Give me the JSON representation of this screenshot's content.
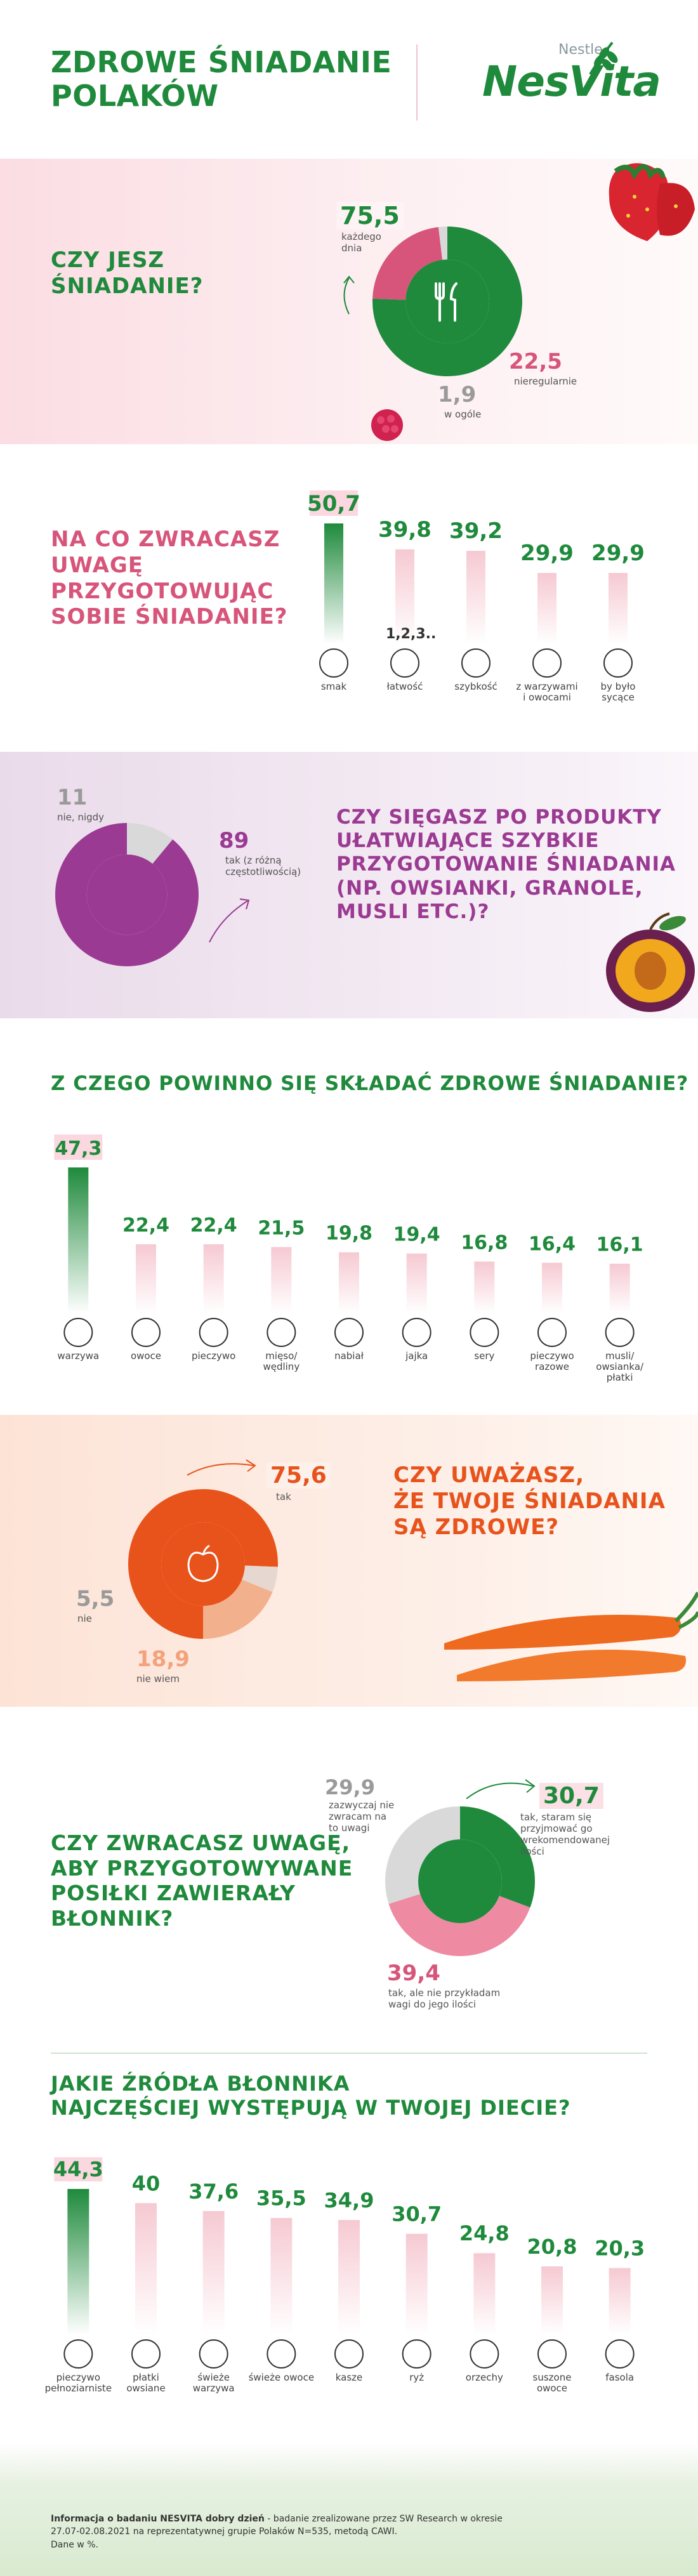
{
  "header": {
    "title_line1": "ZDROWE ŚNIADANIE",
    "title_line2": "POLAKÓW",
    "brand_small": "Nestle",
    "brand": "NesVita"
  },
  "q1": {
    "question_line1": "CZY JESZ",
    "question_line2": "ŚNIADANIE?",
    "v1": "75,5",
    "l1": "każdego dnia",
    "v2": "22,5",
    "l2": "nieregularnie",
    "v3": "1,9",
    "l3": "w ogóle"
  },
  "q2": {
    "question_line1": "NA CO ZWRACASZ",
    "question_line2": "UWAGĘ",
    "question_line3": "PRZYGOTOWUJĄC",
    "question_line4": "SOBIE ŚNIADANIE?",
    "items": [
      {
        "value": "50,7",
        "label": "smak"
      },
      {
        "value": "39,8",
        "label": "łatwość"
      },
      {
        "value": "39,2",
        "label": "szybkość"
      },
      {
        "value": "29,9",
        "label": "z warzywami i owocami"
      },
      {
        "value": "29,9",
        "label": "by było sycące"
      }
    ],
    "easy_glyph": "1,2,3.."
  },
  "q3": {
    "question_line1": "CZY SIĘGASZ PO PRODUKTY",
    "question_line2": "UŁATWIAJĄCE SZYBKIE",
    "question_line3": "PRZYGOTOWANIE ŚNIADANIA",
    "question_line4": "(NP. OWSIANKI, GRANOLE,",
    "question_line5": "MUSLI ETC.)?",
    "v1": "11",
    "l1": "nie, nigdy",
    "v2": "89",
    "l2": "tak (z różną częstotliwością)"
  },
  "q4": {
    "question": "Z CZEGO POWINNO SIĘ SKŁADAĆ ZDROWE ŚNIADANIE?",
    "items": [
      {
        "value": "47,3",
        "label": "warzywa"
      },
      {
        "value": "22,4",
        "label": "owoce"
      },
      {
        "value": "22,4",
        "label": "pieczywo"
      },
      {
        "value": "21,5",
        "label": "mięso/ wędliny"
      },
      {
        "value": "19,8",
        "label": "nabiał"
      },
      {
        "value": "19,4",
        "label": "jajka"
      },
      {
        "value": "16,8",
        "label": "sery"
      },
      {
        "value": "16,4",
        "label": "pieczywo razowe"
      },
      {
        "value": "16,1",
        "label": "musli/ owsianka/ płatki"
      }
    ]
  },
  "q5": {
    "question_line1": "CZY UWAŻASZ,",
    "question_line2": "ŻE TWOJE ŚNIADANIA",
    "question_line3": "SĄ ZDROWE?",
    "v1": "75,6",
    "l1": "tak",
    "v2": "5,5",
    "l2": "nie",
    "v3": "18,9",
    "l3": "nie wiem"
  },
  "q6": {
    "question_line1": "CZY ZWRACASZ UWAGĘ,",
    "question_line2": "ABY PRZYGOTOWYWANE",
    "question_line3": "POSIŁKI ZAWIERAŁY",
    "question_line4": "BŁONNIK?",
    "v1": "29,9",
    "l1": "zazwyczaj nie zwracam na to uwagi",
    "v2": "30,7",
    "l2": "tak, staram się przyjmować go wrekomendowanej ilości",
    "v3": "39,4",
    "l3": "tak, ale nie przykładam wagi do jego ilości"
  },
  "q7": {
    "question_line1": "JAKIE ŹRÓDŁA BŁONNIKA",
    "question_line2": "NAJCZĘŚCIEJ WYSTĘPUJĄ W TWOJEJ DIECIE?",
    "items": [
      {
        "value": "44,3",
        "label": "pieczywo pełnoziarniste"
      },
      {
        "value": "40",
        "label": "płatki owsiane"
      },
      {
        "value": "37,6",
        "label": "świeże warzywa"
      },
      {
        "value": "35,5",
        "label": "świeże owoce"
      },
      {
        "value": "34,9",
        "label": "kasze"
      },
      {
        "value": "30,7",
        "label": "ryż"
      },
      {
        "value": "24,8",
        "label": "orzechy"
      },
      {
        "value": "20,8",
        "label": "suszone owoce"
      },
      {
        "value": "20,3",
        "label": "fasola"
      }
    ]
  },
  "footer": {
    "line1_bold": "Informacja o badaniu NESVITA dobry dzień",
    "line1_rest": " - badanie zrealizowane przez SW Research w okresie",
    "line2": "27.07-02.08.2021 na reprezentatywnej grupie Polaków N=535, metodą CAWI.",
    "line3": "Dane w %."
  },
  "colors": {
    "green": "#1f8a3c",
    "pink": "#d7557a",
    "purple": "#9b3a92",
    "orange": "#e8531c",
    "light_pink": "#f6c9d2",
    "grey": "#d9d9d9"
  },
  "chart_data": [
    {
      "type": "pie",
      "title": "CZY JESZ ŚNIADANIE?",
      "categories": [
        "każdego dnia",
        "nieregularnie",
        "w ogóle"
      ],
      "values": [
        75.5,
        22.5,
        1.9
      ]
    },
    {
      "type": "bar",
      "title": "NA CO ZWRACASZ UWAGĘ PRZYGOTOWUJĄC SOBIE ŚNIADANIE?",
      "categories": [
        "smak",
        "łatwość",
        "szybkość",
        "z warzywami i owocami",
        "by było sycące"
      ],
      "values": [
        50.7,
        39.8,
        39.2,
        29.9,
        29.9
      ]
    },
    {
      "type": "pie",
      "title": "CZY SIĘGASZ PO PRODUKTY UŁATWIAJĄCE SZYBKIE PRZYGOTOWANIE ŚNIADANIA (NP. OWSIANKI, GRANOLE, MUSLI ETC.)?",
      "categories": [
        "nie, nigdy",
        "tak (z różną częstotliwością)"
      ],
      "values": [
        11,
        89
      ]
    },
    {
      "type": "bar",
      "title": "Z CZEGO POWINNO SIĘ SKŁADAĆ ZDROWE ŚNIADANIE?",
      "categories": [
        "warzywa",
        "owoce",
        "pieczywo",
        "mięso/ wędliny",
        "nabiał",
        "jajka",
        "sery",
        "pieczywo razowe",
        "musli/ owsianka/ płatki"
      ],
      "values": [
        47.3,
        22.4,
        22.4,
        21.5,
        19.8,
        19.4,
        16.8,
        16.4,
        16.1
      ]
    },
    {
      "type": "pie",
      "title": "CZY UWAŻASZ, ŻE TWOJE ŚNIADANIA SĄ ZDROWE?",
      "categories": [
        "tak",
        "nie",
        "nie wiem"
      ],
      "values": [
        75.6,
        5.5,
        18.9
      ]
    },
    {
      "type": "pie",
      "title": "CZY ZWRACASZ UWAGĘ, ABY PRZYGOTOWYWANE POSIŁKI ZAWIERAŁY BŁONNIK?",
      "categories": [
        "tak, staram się przyjmować go wrekomendowanej ilości",
        "tak, ale nie przykładam wagi do jego ilości",
        "zazwyczaj nie zwracam na to uwagi"
      ],
      "values": [
        30.7,
        39.4,
        29.9
      ]
    },
    {
      "type": "bar",
      "title": "JAKIE ŹRÓDŁA BŁONNIKA NAJCZĘŚCIEJ WYSTĘPUJĄ W TWOJEJ DIECIE?",
      "categories": [
        "pieczywo pełnoziarniste",
        "płatki owsiane",
        "świeże warzywa",
        "świeże owoce",
        "kasze",
        "ryż",
        "orzechy",
        "suszone owoce",
        "fasola"
      ],
      "values": [
        44.3,
        40,
        37.6,
        35.5,
        34.9,
        30.7,
        24.8,
        20.8,
        20.3
      ]
    }
  ]
}
